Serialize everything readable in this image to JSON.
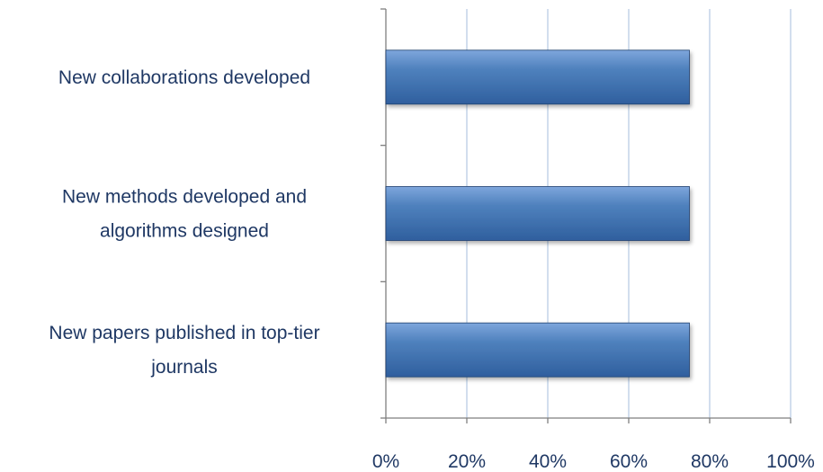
{
  "chart_data": {
    "type": "bar",
    "orientation": "horizontal",
    "categories": [
      "New collaborations developed",
      "New methods developed and algorithms designed",
      "New papers published in top-tier journals"
    ],
    "category_lines": [
      [
        "New collaborations developed"
      ],
      [
        "New methods developed and",
        "algorithms designed"
      ],
      [
        "New papers published in top-tier",
        "journals"
      ]
    ],
    "values": [
      0.75,
      0.75,
      0.75
    ],
    "xlim": [
      0,
      1
    ],
    "x_ticks": [
      0,
      0.2,
      0.4,
      0.6,
      0.8,
      1.0
    ],
    "x_tick_labels": [
      "0%",
      "20%",
      "40%",
      "60%",
      "80%",
      "100%"
    ],
    "grid": "vertical",
    "legend": "none",
    "colors": {
      "bar_fill": "#4f81bd",
      "bar_light": "#7ea6dc",
      "bar_dark": "#2f5f9e",
      "bar_edge": "#1f3f6e",
      "grid": "#b9cde5",
      "axis": "#7f7f7f",
      "text": "#1f3864"
    }
  }
}
